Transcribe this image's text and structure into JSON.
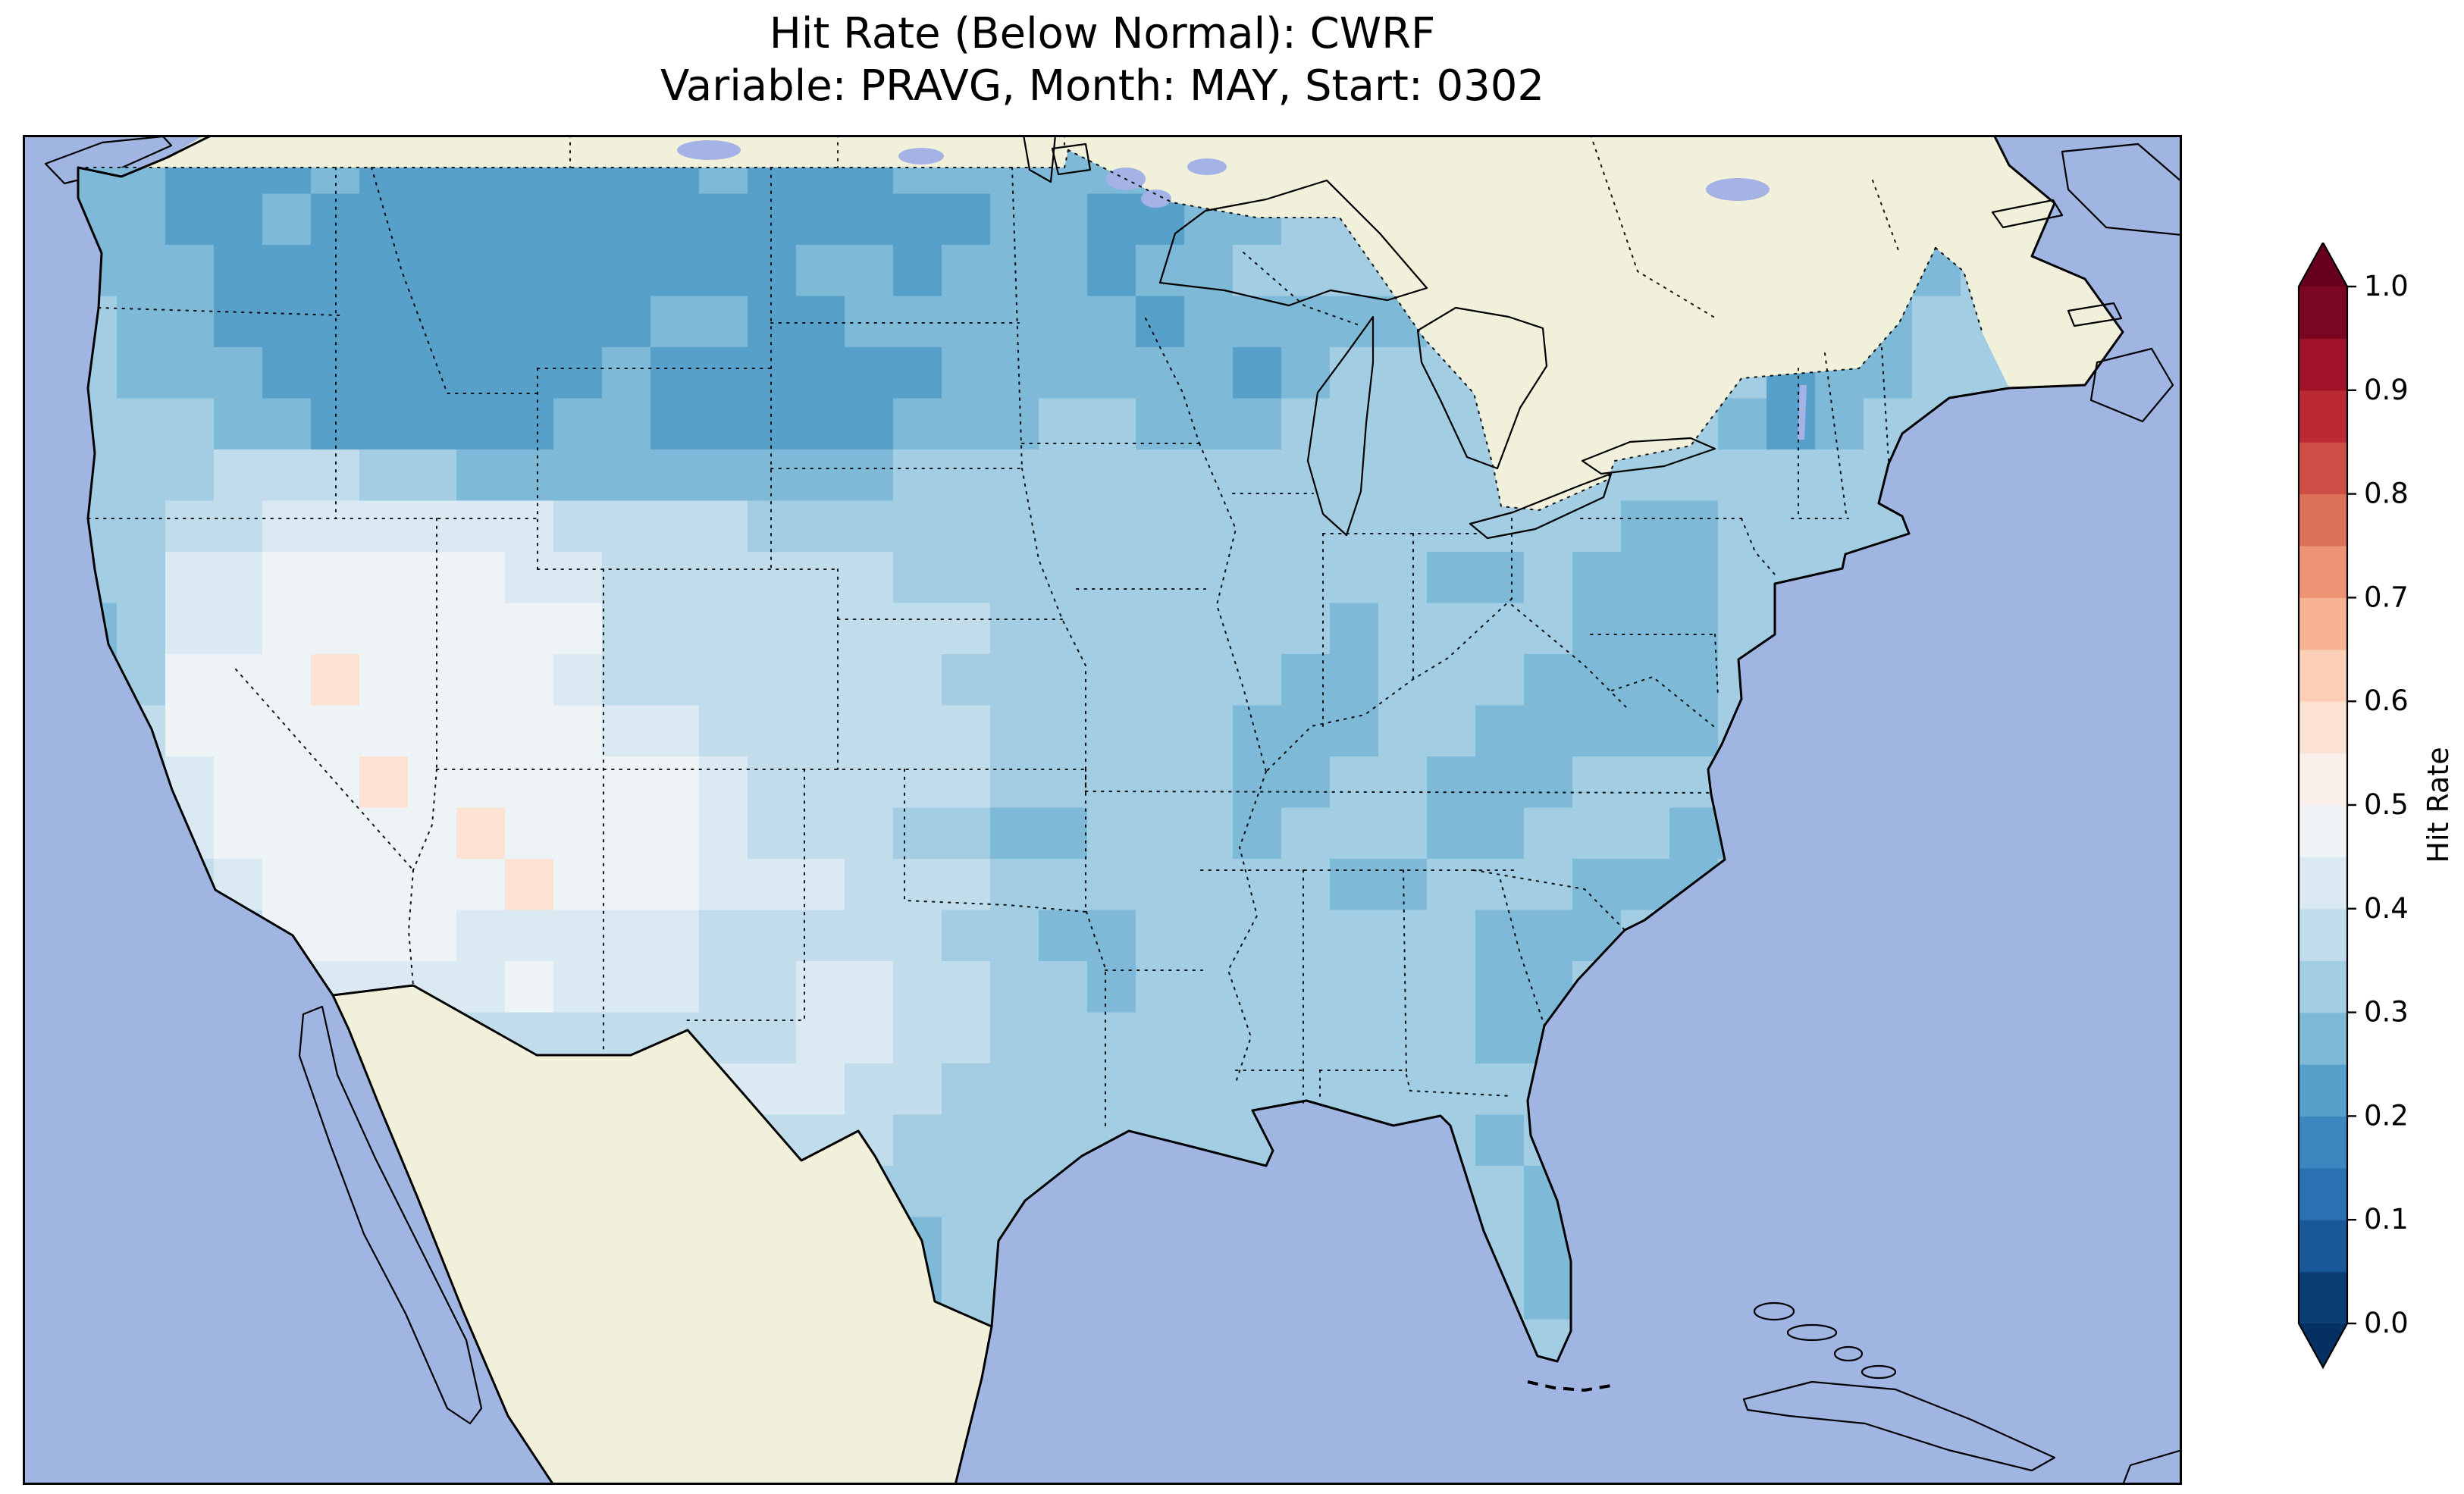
{
  "title": {
    "line1": "Hit Rate (Below Normal): CWRF",
    "line2": "Variable: PRAVG, Month: MAY, Start: 0302"
  },
  "colorbar": {
    "label": "Hit Rate",
    "vmin": 0.0,
    "vmax": 1.0,
    "n_segments": 20,
    "extend": "both",
    "ticks": [
      {
        "value": 0.0,
        "label": "0.0"
      },
      {
        "value": 0.1,
        "label": "0.1"
      },
      {
        "value": 0.2,
        "label": "0.2"
      },
      {
        "value": 0.3,
        "label": "0.3"
      },
      {
        "value": 0.4,
        "label": "0.4"
      },
      {
        "value": 0.5,
        "label": "0.5"
      },
      {
        "value": 0.6,
        "label": "0.6"
      },
      {
        "value": 0.7,
        "label": "0.7"
      },
      {
        "value": 0.8,
        "label": "0.8"
      },
      {
        "value": 0.9,
        "label": "0.9"
      },
      {
        "value": 1.0,
        "label": "1.0"
      }
    ],
    "colormap": {
      "name": "RdBu_r",
      "anchors": [
        {
          "t": 0.0,
          "color": "#053061"
        },
        {
          "t": 0.1,
          "color": "#2166ac"
        },
        {
          "t": 0.2,
          "color": "#4393c3"
        },
        {
          "t": 0.3,
          "color": "#92c5de"
        },
        {
          "t": 0.4,
          "color": "#d1e5f0"
        },
        {
          "t": 0.5,
          "color": "#f7f7f7"
        },
        {
          "t": 0.6,
          "color": "#fddbc7"
        },
        {
          "t": 0.7,
          "color": "#f4a582"
        },
        {
          "t": 0.8,
          "color": "#d6604d"
        },
        {
          "t": 0.9,
          "color": "#b2182b"
        },
        {
          "t": 1.0,
          "color": "#67001f"
        }
      ]
    }
  },
  "map": {
    "colors": {
      "ocean": "#a1b5e2",
      "land": "#f0f0db",
      "lake": "#a5b2e6",
      "coastline": "#000000",
      "border": "#000000"
    }
  },
  "chart_data": {
    "type": "heatmap",
    "title": "Hit Rate (Below Normal): CWRF",
    "subtitle": "Variable: PRAVG, Month: MAY, Start: 0302",
    "metric": "Hit Rate (Below Normal)",
    "model": "CWRF",
    "variable": "PRAVG",
    "month": "MAY",
    "start": "0302",
    "region": "CONUS",
    "legend_label": "Hit Rate",
    "value_range": [
      0.0,
      1.0
    ],
    "colormap": "RdBu_r, discrete 0.05 bins, extend both",
    "grid": {
      "cols": 40,
      "rows": 24,
      "note": "Estimated hit-rate raster over the contiguous US, clipped to the US boundary. Letters map to approximate hit-rate bin centers.",
      "value_key": {
        "A": 0.225,
        "B": 0.275,
        "C": 0.325,
        "D": 0.375,
        "E": 0.425,
        "F": 0.475,
        "G": 0.575
      },
      "rows_rle": [
        "2B 3A 1B 7A 1B 3A 7B 16C",
        "2B 2A 1B 14A 2B 2A 2B 15C",
        "3B 12A 2B 1A 3B 1A 2B 12C 3B 1C",
        "1C 2B 9A 2B 2A 6B 1A 5B 8C 2B 2C",
        "1C 3B 7A 1B 6A 6B 1A 1B 9C 1A 2B 2C",
        "3C 2B 5A 2B 5A 3B 2C 3B 9C 1B 1A 1B 3C",
        "3C 3D 2C 9B 23C",
        "2C 2D 6E 4D 18C 2B 6C",
        "2C 2E 5F 2E 6D 11C 2B 1C 3B 6C",
        "1B 1C 2E 7F 8D 7C 1B 4C 3B 6C",
        "1B 1C 3F 1G 4F 1E 7D 7C 2B 3C 4B 6C",
        "1C 1D 9F 2E 6D 5C 3B 2C 5B 6C",
        "1C 1D 1E 3F 1G 6F 1E 5D 5C 2B 2C 3B 3C 1B 5C",
        "1B 1C 1E 5F 1G 4F 1E 3D 2C 2B 3C 1B 3C 2B 3C 2B 5C",
        "2C 1D 1E 5F 1G 3F 3E 3D 7C 2B 3C 3B 6C",
        "2C 2D 4F 5E 5D 2C 2B 7C 3B 8C",
        "3C 1D 5E 1F 3E 2D 2E 2D 2C 1B 7C 2B 9C",
        "5C 10D 2E 2D 10C 2B 9C",
        "13C 3E 2D 22C",
        "14C 3D 12C 1B 10C",
        "15C 1D 14C 1B 9C",
        "17C 1B 12C 1B 9C",
        "17C 1B 12C 1B 9C",
        "17C 1B 13C 1B 8C"
      ]
    }
  }
}
